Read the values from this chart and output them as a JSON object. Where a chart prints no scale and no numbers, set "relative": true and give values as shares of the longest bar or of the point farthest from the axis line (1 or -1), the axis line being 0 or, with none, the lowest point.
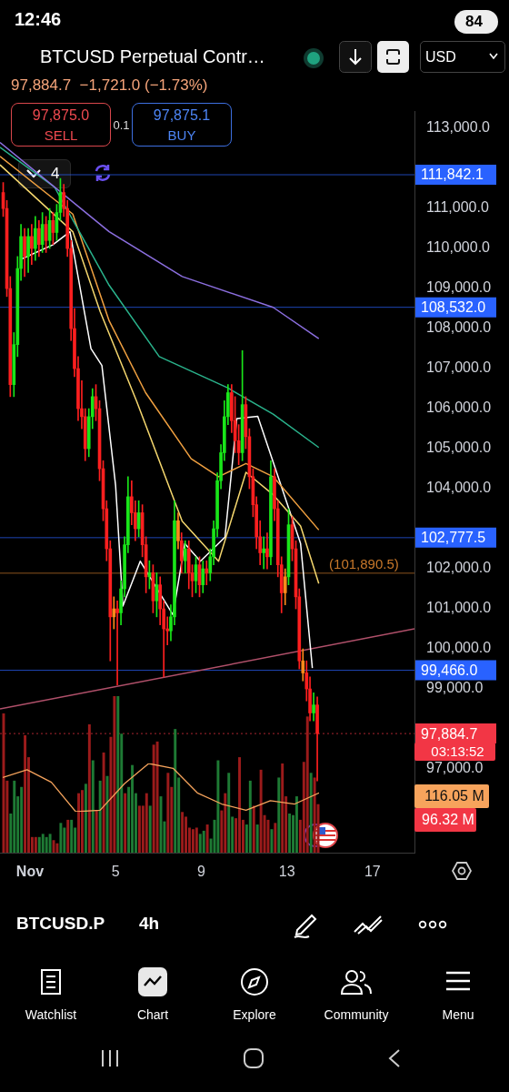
{
  "chart_data": [
    {
      "type": "candlestick",
      "title": "BTCUSD Perpetual Contr…",
      "subtitle": "97,884.7  −1,721.0 (−1.73%)",
      "x": [
        -0.25,
        -0.08,
        0.08,
        0.25,
        0.42,
        0.58,
        0.75,
        0.92,
        1.08,
        1.25,
        1.42,
        1.58,
        1.75,
        1.92,
        2.08,
        2.25,
        2.42,
        2.58,
        2.75,
        2.92,
        3.08,
        3.25,
        3.42,
        3.58,
        3.75,
        3.92,
        4.08,
        4.25,
        4.42,
        4.58,
        4.75,
        4.92,
        5.08,
        5.25,
        5.42,
        5.58,
        5.75,
        5.92,
        6.08,
        6.25,
        6.42,
        6.58,
        6.75,
        6.92,
        7.08,
        7.25,
        7.42,
        7.58,
        7.75,
        7.92,
        8.08,
        8.25,
        8.42,
        8.58,
        8.75,
        8.92,
        9.08,
        9.25,
        9.42,
        9.58,
        9.75,
        9.92,
        10.08,
        10.25,
        10.42,
        10.58,
        10.75,
        10.92,
        11.08,
        11.25,
        11.42,
        11.58,
        11.75,
        11.92,
        12.08,
        12.25,
        12.42,
        12.58,
        12.75,
        12.92,
        13.08,
        13.25,
        13.42,
        13.58,
        13.75,
        13.92,
        14.08,
        14.25,
        14.42
      ],
      "ohlc": [
        [
          111400,
          111650,
          110800,
          111000
        ],
        [
          111000,
          111200,
          108800,
          109000
        ],
        [
          109000,
          109300,
          106300,
          106600
        ],
        [
          106600,
          107900,
          106300,
          107600
        ],
        [
          107600,
          109800,
          107300,
          109500
        ],
        [
          109500,
          110600,
          109200,
          110300
        ],
        [
          110300,
          110500,
          109300,
          109800
        ],
        [
          109800,
          110500,
          109400,
          110300
        ],
        [
          110300,
          110600,
          109600,
          110000
        ],
        [
          110000,
          110800,
          109700,
          110500
        ],
        [
          110500,
          110700,
          109800,
          110100
        ],
        [
          110100,
          110900,
          109900,
          110600
        ],
        [
          110600,
          110800,
          109900,
          110200
        ],
        [
          110200,
          111000,
          110000,
          110700
        ],
        [
          110700,
          110900,
          110100,
          110400
        ],
        [
          110400,
          111100,
          110200,
          110900
        ],
        [
          110900,
          111750,
          110700,
          111400
        ],
        [
          111400,
          111600,
          110800,
          111000
        ],
        [
          111000,
          111200,
          109800,
          110000
        ],
        [
          110000,
          110200,
          107700,
          108000
        ],
        [
          108000,
          108500,
          106800,
          107000
        ],
        [
          107000,
          107300,
          105700,
          106000
        ],
        [
          106000,
          106700,
          105500,
          105800
        ],
        [
          105800,
          106000,
          104700,
          105000
        ],
        [
          105000,
          106000,
          104800,
          105800
        ],
        [
          105800,
          106500,
          105500,
          106300
        ],
        [
          106300,
          106600,
          105700,
          106000
        ],
        [
          106000,
          106200,
          104200,
          104500
        ],
        [
          104500,
          104700,
          103200,
          103500
        ],
        [
          103500,
          103700,
          102200,
          102500
        ],
        [
          102500,
          102700,
          99700,
          100800
        ],
        [
          100800,
          101300,
          100500,
          101000
        ],
        [
          101000,
          101200,
          99100,
          100900
        ],
        [
          100900,
          101700,
          100600,
          101500
        ],
        [
          101500,
          102800,
          101300,
          102600
        ],
        [
          102600,
          104300,
          102400,
          103800
        ],
        [
          103800,
          104200,
          103100,
          103400
        ],
        [
          103400,
          103700,
          102700,
          103000
        ],
        [
          103000,
          103700,
          102800,
          103400
        ],
        [
          103400,
          103600,
          102300,
          102600
        ],
        [
          102600,
          102800,
          101400,
          101800
        ],
        [
          101800,
          102200,
          101500,
          101900
        ],
        [
          101900,
          102100,
          100900,
          101200
        ],
        [
          101200,
          101900,
          100800,
          101600
        ],
        [
          101600,
          101800,
          100600,
          101000
        ],
        [
          101000,
          101200,
          99300,
          100500
        ],
        [
          100500,
          100800,
          100100,
          100450
        ],
        [
          100450,
          101100,
          100200,
          100800
        ],
        [
          100800,
          103700,
          100600,
          103200
        ],
        [
          103200,
          103400,
          102500,
          102700
        ],
        [
          102700,
          102900,
          101900,
          102200
        ],
        [
          102200,
          102700,
          101900,
          102500
        ],
        [
          102500,
          102700,
          101500,
          101900
        ],
        [
          101900,
          102100,
          101300,
          101700
        ],
        [
          101700,
          102300,
          101400,
          102100
        ],
        [
          102100,
          102300,
          101300,
          101600
        ],
        [
          101600,
          102200,
          101400,
          102000
        ],
        [
          102000,
          102200,
          101600,
          101900
        ],
        [
          101900,
          102500,
          101700,
          102300
        ],
        [
          102300,
          103200,
          102100,
          103000
        ],
        [
          103000,
          104400,
          102800,
          104200
        ],
        [
          104200,
          105100,
          104000,
          104900
        ],
        [
          104900,
          106200,
          104700,
          105800
        ],
        [
          105800,
          106600,
          105600,
          106400
        ],
        [
          106400,
          106600,
          105400,
          105700
        ],
        [
          105700,
          106300,
          104900,
          105200
        ],
        [
          105200,
          105600,
          104600,
          104900
        ],
        [
          104900,
          107450,
          104700,
          106100
        ],
        [
          106100,
          106300,
          105000,
          105300
        ],
        [
          105300,
          105500,
          104000,
          104300
        ],
        [
          104300,
          104500,
          103300,
          103600
        ],
        [
          103600,
          103800,
          102500,
          102800
        ],
        [
          102800,
          103200,
          102100,
          102400
        ],
        [
          102400,
          102800,
          102000,
          102500
        ],
        [
          102500,
          102900,
          102000,
          102300
        ],
        [
          102300,
          104700,
          102100,
          104300
        ],
        [
          104300,
          104500,
          103200,
          103500
        ],
        [
          103500,
          103700,
          101800,
          102100
        ],
        [
          102100,
          102300,
          100900,
          101400
        ],
        [
          101400,
          102000,
          101100,
          101800
        ],
        [
          101800,
          103500,
          101600,
          103100
        ],
        [
          103100,
          103300,
          102200,
          102500
        ],
        [
          102500,
          102700,
          101000,
          101300
        ],
        [
          101300,
          101500,
          99500,
          99700
        ],
        [
          99700,
          100000,
          99200,
          99400
        ],
        [
          99400,
          99700,
          98700,
          99000
        ],
        [
          99000,
          99300,
          98200,
          98400
        ],
        [
          98400,
          98900,
          98200,
          98600
        ],
        [
          98600,
          98800,
          96700,
          97884.7
        ]
      ],
      "colors": [
        "#ff1f1f",
        "#ff1f1f",
        "#ff1f1f",
        "#19e619",
        "#19e619",
        "#19e619",
        "#ff1f1f",
        "#19e619",
        "#ff1f1f",
        "#19e619",
        "#ff1f1f",
        "#19e619",
        "#ff1f1f",
        "#19e619",
        "#ff1f1f",
        "#19e619",
        "#19e619",
        "#ff1f1f",
        "#ff1f1f",
        "#ff1f1f",
        "#ff1f1f",
        "#ff1f1f",
        "#ff1f1f",
        "#ff1f1f",
        "#19e619",
        "#19e619",
        "#ff1f1f",
        "#ff1f1f",
        "#ff1f1f",
        "#ff1f1f",
        "#ff1f1f",
        "#ff8a1a",
        "#ff1f1f",
        "#19e619",
        "#19e619",
        "#19e619",
        "#ff1f1f",
        "#ff1f1f",
        "#19e619",
        "#ff1f1f",
        "#ff1f1f",
        "#19e619",
        "#ff1f1f",
        "#19e619",
        "#ff1f1f",
        "#ff1f1f",
        "#ff1f1f",
        "#19e619",
        "#19e619",
        "#ff8a1a",
        "#ff1f1f",
        "#19e619",
        "#ff1f1f",
        "#ff1f1f",
        "#19e619",
        "#ff1f1f",
        "#19e619",
        "#ff1f1f",
        "#19e619",
        "#19e619",
        "#19e619",
        "#19e619",
        "#19e619",
        "#19e619",
        "#ff1f1f",
        "#ff1f1f",
        "#ff1f1f",
        "#19e619",
        "#ff1f1f",
        "#ff1f1f",
        "#ff1f1f",
        "#ff1f1f",
        "#ff1f1f",
        "#19e619",
        "#ff1f1f",
        "#19e619",
        "#ff1f1f",
        "#ff1f1f",
        "#ff1f1f",
        "#ff8a1a",
        "#19e619",
        "#ff1f1f",
        "#ff1f1f",
        "#ff1f1f",
        "#ff8a1a",
        "#ff1f1f",
        "#ff1f1f",
        "#19e619",
        "#ff1f1f"
      ],
      "series": [
        {
          "type": "line",
          "color": "#8c6fe0",
          "x": [
            -0.4,
            4.7,
            8.11,
            12.36,
            14.49
          ],
          "values": [
            112650,
            110420,
            109300,
            108530,
            107750
          ]
        },
        {
          "type": "line",
          "color": "#2ab38c",
          "x": [
            -0.4,
            2.15,
            4.7,
            7.04,
            10.23,
            12.36,
            14.49
          ],
          "values": [
            112530,
            111530,
            109080,
            107300,
            106520,
            105860,
            105030
          ]
        },
        {
          "type": "line",
          "color": "#f0a040",
          "x": [
            -0.4,
            3.0,
            4.7,
            6.4,
            8.53,
            9.81,
            11.09,
            12.36,
            14.49
          ],
          "values": [
            112300,
            110860,
            108190,
            106400,
            104750,
            104300,
            104630,
            104300,
            102970
          ]
        },
        {
          "type": "line",
          "color": "#f5d76e",
          "x": [
            -0.4,
            3.0,
            4.28,
            5.98,
            8.11,
            9.81,
            11.09,
            12.36,
            13.64,
            14.49
          ],
          "values": [
            112090,
            110420,
            108420,
            106190,
            103190,
            102190,
            104410,
            103850,
            103070,
            101630
          ]
        },
        {
          "type": "line",
          "color": "#ffffff",
          "x": [
            0.57,
            2.06,
            2.87,
            3.85,
            4.36,
            5.0,
            5.34,
            6.15,
            7.68,
            8.23,
            8.96,
            10.11,
            10.66,
            11.64,
            13.64,
            14.19
          ],
          "values": [
            109730,
            110090,
            110420,
            107500,
            107080,
            104080,
            101070,
            102190,
            100850,
            102630,
            102190,
            102790,
            105750,
            105810,
            102630,
            99520
          ]
        },
        {
          "type": "line",
          "color": "#b0506a",
          "x": [
            -0.4,
            18.96
          ],
          "values": [
            98500,
            100500
          ]
        }
      ],
      "xlim": [
        -0.4,
        18.96
      ],
      "xticks": [
        {
          "value": 1,
          "label": "Nov"
        },
        5,
        9,
        13,
        17
      ],
      "ylim": [
        94910,
        113420
      ],
      "yticks": [
        {
          "value": 97000,
          "label": "97,000.0"
        },
        {
          "value": 99000,
          "label": "99,000.0"
        },
        {
          "value": 100000,
          "label": "100,000.0"
        },
        {
          "value": 101000,
          "label": "101,000.0"
        },
        {
          "value": 102000,
          "label": "102,000.0"
        },
        {
          "value": 104000,
          "label": "104,000.0"
        },
        {
          "value": 105000,
          "label": "105,000.0"
        },
        {
          "value": 106000,
          "label": "106,000.0"
        },
        {
          "value": 107000,
          "label": "107,000.0"
        },
        {
          "value": 108000,
          "label": "108,000.0"
        },
        {
          "value": 109000,
          "label": "109,000.0"
        },
        {
          "value": 110000,
          "label": "110,000.0"
        },
        {
          "value": 111000,
          "label": "111,000.0"
        },
        {
          "value": 113000,
          "label": "113,000.0"
        }
      ],
      "ref_lines": [
        {
          "axis": "y",
          "value": 111842.1,
          "label": "111,842.1",
          "color": "#2962ff"
        },
        {
          "axis": "y",
          "value": 108532.0,
          "label": "108,532.0",
          "color": "#2962ff"
        },
        {
          "axis": "y",
          "value": 102777.5,
          "label": "102,777.5",
          "color": "#2962ff"
        },
        {
          "axis": "y",
          "value": 101890.5,
          "color": "#c8782a"
        },
        {
          "axis": "y",
          "value": 99466.0,
          "label": "99,466.0",
          "color": "#2962ff"
        },
        {
          "axis": "y",
          "value": 97884.7,
          "label": "97,884.7",
          "color": "#f23645",
          "line_style": "dotted"
        }
      ],
      "annotations": [
        {
          "text": "(101,890.5)",
          "x": 16.6,
          "y": 101890.5
        },
        "12:46",
        "84",
        "97,875.0",
        "SELL",
        "0.1",
        "97,875.1",
        "BUY",
        "USD",
        "4",
        "03:13:52",
        "BTCUSD.P",
        "4h",
        "Watchlist",
        "Chart",
        "Explore",
        "Community",
        "Menu"
      ]
    },
    {
      "type": "bar",
      "relative": true,
      "tick_labels": false,
      "categories": [
        null,
        null,
        null,
        null,
        null,
        null,
        null,
        null,
        null,
        null,
        null,
        null,
        null,
        null,
        null,
        null,
        null,
        null,
        null,
        null,
        null,
        null,
        null,
        null,
        null,
        null,
        null,
        null,
        null,
        null,
        null,
        null,
        null,
        null,
        null,
        null,
        null,
        null,
        null,
        null,
        null,
        null,
        null,
        null,
        null,
        null,
        null,
        null,
        null,
        null,
        null,
        null,
        null,
        null,
        null,
        null,
        null,
        null,
        null,
        null,
        null,
        null,
        null,
        null,
        null,
        null,
        null,
        null,
        null,
        null,
        null,
        null,
        null,
        null,
        null,
        null,
        null,
        null,
        null,
        null,
        null,
        null,
        null,
        null,
        null,
        null,
        null,
        null,
        null
      ],
      "values": [
        0.89,
        0.46,
        0.25,
        0.46,
        0.36,
        0.42,
        0.75,
        0.61,
        0.1,
        0.1,
        0.1,
        0.12,
        0.1,
        0.12,
        0.08,
        0.06,
        0.19,
        0.16,
        0.21,
        0.21,
        0.16,
        0.38,
        0.4,
        0.44,
        0.82,
        0.59,
        0.27,
        0.46,
        0.64,
        0.49,
        0.74,
        1,
        1,
        0.76,
        0.38,
        0.42,
        0.56,
        0.38,
        0.3,
        0.3,
        0.38,
        0.3,
        0.69,
        0.71,
        0.36,
        0.2,
        0.51,
        0.42,
        0.79,
        0.48,
        0.26,
        0.23,
        0.16,
        0.15,
        0.16,
        0.12,
        0.14,
        0.18,
        0.09,
        0.21,
        0.59,
        0.27,
        0.38,
        0.51,
        0.23,
        0.22,
        0.61,
        0.21,
        0.18,
        0.46,
        0.3,
        0.18,
        0.53,
        0.24,
        0.21,
        0.15,
        0.19,
        0.48,
        0.57,
        0.36,
        0.25,
        0.24,
        0.36,
        0.21,
        0.58,
        0.87,
        0.51,
        0.48,
        0.31
      ],
      "colors": [
        "#9b1b1b",
        "#9b1b1b",
        "#1e7a34",
        "#1e7a34",
        "#1e7a34",
        "#1e7a34",
        "#9b1b1b",
        "#9b1b1b",
        "#9b1b1b",
        "#9b1b1b",
        "#1e7a34",
        "#1e7a34",
        "#1e7a34",
        "#1e7a34",
        "#9b1b1b",
        "#9b1b1b",
        "#1e7a34",
        "#1e7a34",
        "#9b1b1b",
        "#1e7a34",
        "#1e7a34",
        "#9b1b1b",
        "#9b1b1b",
        "#1e7a34",
        "#9b1b1b",
        "#1e7a34",
        "#9b1b1b",
        "#1e7a34",
        "#9b1b1b",
        "#1e7a34",
        "#9b1b1b",
        "#9b1b1b",
        "#1e7a34",
        "#1e7a34",
        "#9b1b1b",
        "#1e7a34",
        "#1e7a34",
        "#1e7a34",
        "#9b1b1b",
        "#9b1b1b",
        "#9b1b1b",
        "#1e7a34",
        "#9b1b1b",
        "#9b1b1b",
        "#1e7a34",
        "#1e7a34",
        "#9b1b1b",
        "#9b1b1b",
        "#1e7a34",
        "#1e7a34",
        "#9b1b1b",
        "#9b1b1b",
        "#9b1b1b",
        "#9b1b1b",
        "#9b1b1b",
        "#1e7a34",
        "#1e7a34",
        "#9b1b1b",
        "#1e7a34",
        "#1e7a34",
        "#1e7a34",
        "#9b1b1b",
        "#9b1b1b",
        "#1e7a34",
        "#1e7a34",
        "#9b1b1b",
        "#9b1b1b",
        "#9b1b1b",
        "#1e7a34",
        "#1e7a34",
        "#9b1b1b",
        "#1e7a34",
        "#9b1b1b",
        "#9b1b1b",
        "#9b1b1b",
        "#1e7a34",
        "#9b1b1b",
        "#1e7a34",
        "#9b1b1b",
        "#9b1b1b",
        "#1e7a34",
        "#1e7a34",
        "#1e7a34",
        "#9b1b1b",
        "#9b1b1b",
        "#9b1b1b",
        "#1e7a34",
        "#9b1b1b",
        "#9b1b1b"
      ],
      "annotations": [
        "116.05 M",
        "96.32 M"
      ]
    },
    {
      "type": "line",
      "relative": true,
      "tick_labels": false,
      "color": "#f5a35c",
      "categories": [
        null,
        null,
        null,
        null,
        null,
        null,
        null,
        null,
        null,
        null,
        null,
        null,
        null,
        null
      ],
      "values": [
        0.71,
        0.87,
        0.61,
        0,
        0.03,
        0.58,
        1,
        0.9,
        0.39,
        0.16,
        0.03,
        0.23,
        0.16,
        0.39
      ]
    }
  ]
}
